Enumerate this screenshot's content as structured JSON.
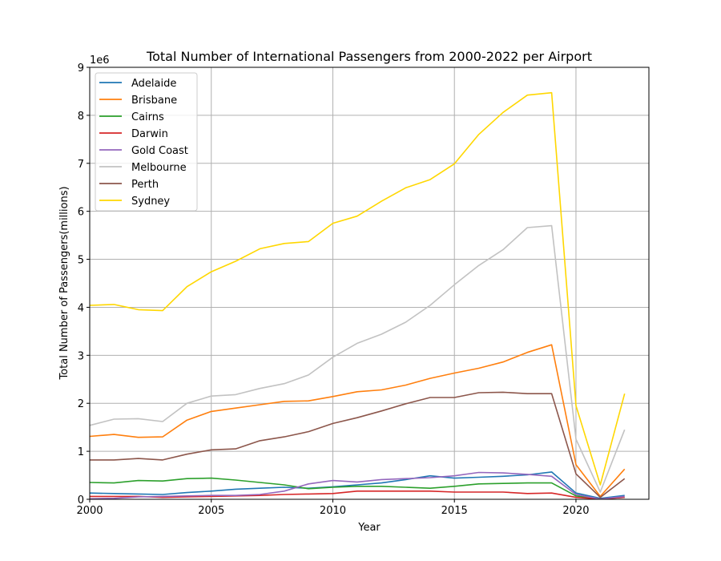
{
  "chart_data": {
    "type": "line",
    "title": "Total Number of International Passengers from 2000-2022 per Airport",
    "xlabel": "Year",
    "ylabel": "Total Number of Passengers(millions)",
    "y_offset_label": "1e6",
    "xlim": [
      2000,
      23
    ],
    "ylim": [
      0,
      9000000
    ],
    "x_ticks": [
      2000,
      2005,
      2010,
      2015,
      2020
    ],
    "x_tick_labels": [
      "2000",
      "2005",
      "2010",
      "2015",
      "2020"
    ],
    "y_ticks": [
      0,
      1000000,
      2000000,
      3000000,
      4000000,
      5000000,
      6000000,
      7000000,
      8000000,
      9000000
    ],
    "y_tick_labels": [
      "0",
      "1",
      "2",
      "3",
      "4",
      "5",
      "6",
      "7",
      "8",
      "9"
    ],
    "grid": true,
    "legend_position": "top-left",
    "x": [
      2000,
      2001,
      2002,
      2003,
      2004,
      2005,
      2006,
      2007,
      2008,
      2009,
      2010,
      2011,
      2012,
      2013,
      2014,
      2015,
      2016,
      2017,
      2018,
      2019,
      2020,
      2021,
      2022
    ],
    "series": [
      {
        "name": "Adelaide",
        "color": "#1f77b4",
        "values": [
          130000,
          120000,
          110000,
          100000,
          140000,
          170000,
          210000,
          230000,
          250000,
          230000,
          260000,
          300000,
          340000,
          410000,
          490000,
          440000,
          460000,
          480000,
          510000,
          570000,
          130000,
          20000,
          80000
        ]
      },
      {
        "name": "Brisbane",
        "color": "#ff7f0e",
        "values": [
          1310000,
          1350000,
          1290000,
          1300000,
          1650000,
          1830000,
          1900000,
          1970000,
          2040000,
          2050000,
          2140000,
          2240000,
          2280000,
          2380000,
          2520000,
          2630000,
          2730000,
          2860000,
          3060000,
          3220000,
          720000,
          60000,
          630000
        ]
      },
      {
        "name": "Cairns",
        "color": "#2ca02c",
        "values": [
          350000,
          340000,
          390000,
          380000,
          430000,
          440000,
          400000,
          350000,
          300000,
          220000,
          250000,
          270000,
          270000,
          250000,
          230000,
          270000,
          320000,
          330000,
          340000,
          340000,
          70000,
          10000,
          40000
        ]
      },
      {
        "name": "Darwin",
        "color": "#d62728",
        "values": [
          60000,
          60000,
          60000,
          40000,
          50000,
          60000,
          70000,
          80000,
          100000,
          110000,
          120000,
          170000,
          170000,
          170000,
          170000,
          150000,
          150000,
          150000,
          120000,
          130000,
          40000,
          5000,
          40000
        ]
      },
      {
        "name": "Gold Coast",
        "color": "#9467bd",
        "values": [
          10000,
          20000,
          50000,
          60000,
          70000,
          80000,
          80000,
          100000,
          170000,
          320000,
          390000,
          360000,
          410000,
          430000,
          450000,
          490000,
          560000,
          550000,
          520000,
          480000,
          100000,
          5000,
          60000
        ]
      },
      {
        "name": "Melbourne",
        "color": "#c2c2c2",
        "values": [
          1540000,
          1670000,
          1680000,
          1620000,
          2000000,
          2150000,
          2180000,
          2310000,
          2410000,
          2590000,
          2960000,
          3250000,
          3440000,
          3690000,
          4040000,
          4470000,
          4870000,
          5200000,
          5660000,
          5700000,
          1250000,
          150000,
          1450000
        ]
      },
      {
        "name": "Perth",
        "color": "#8c564b",
        "values": [
          820000,
          820000,
          850000,
          820000,
          940000,
          1030000,
          1050000,
          1220000,
          1300000,
          1410000,
          1580000,
          1700000,
          1840000,
          1990000,
          2120000,
          2120000,
          2220000,
          2230000,
          2200000,
          2200000,
          530000,
          40000,
          430000
        ]
      },
      {
        "name": "Sydney",
        "color": "#ffd700",
        "values": [
          4040000,
          4060000,
          3950000,
          3930000,
          4430000,
          4740000,
          4960000,
          5220000,
          5330000,
          5370000,
          5750000,
          5900000,
          6210000,
          6490000,
          6660000,
          6990000,
          7600000,
          8060000,
          8420000,
          8470000,
          1950000,
          300000,
          2200000
        ]
      }
    ]
  }
}
